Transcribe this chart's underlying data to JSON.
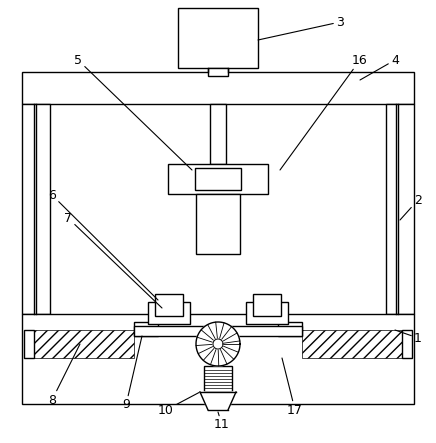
{
  "bg_color": "#ffffff",
  "line_color": "#000000",
  "figsize": [
    4.36,
    4.43
  ],
  "dpi": 100,
  "lw": 1.0
}
